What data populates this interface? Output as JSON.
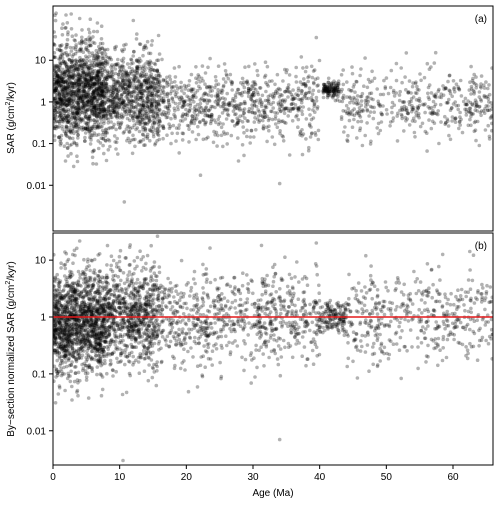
{
  "chart_data": [
    {
      "type": "scatter",
      "panel_label": "(a)",
      "ylabel": "SAR (g/cm2/kyr)",
      "ylabel_parts": {
        "before": "SAR (g/cm",
        "sup": "2",
        "after": "/kyr)"
      },
      "y_scale": "log",
      "ylim": [
        0.0008,
        200
      ],
      "xlim": [
        0,
        66
      ],
      "y_ticks": [
        0.01,
        0.1,
        1,
        10
      ],
      "y_tick_labels": [
        "0.01",
        "0.1",
        "1",
        "10"
      ],
      "point_color": "#000000",
      "point_opacity": 0.3,
      "clusters": [
        {
          "x_range": [
            0,
            8
          ],
          "y_center": 1.8,
          "y_spread_decades": 0.6,
          "count": 1400
        },
        {
          "x_range": [
            8,
            16
          ],
          "y_center": 1.3,
          "y_spread_decades": 0.55,
          "count": 800
        },
        {
          "x_range": [
            16,
            40
          ],
          "y_center": 0.9,
          "y_spread_decades": 0.45,
          "count": 750
        },
        {
          "x_range": [
            40.5,
            43
          ],
          "y_center": 2.0,
          "y_spread_decades": 0.1,
          "count": 120
        },
        {
          "x_range": [
            43,
            66
          ],
          "y_center": 0.9,
          "y_spread_decades": 0.4,
          "count": 450
        }
      ],
      "outliers": [
        {
          "x": 0.3,
          "y": 120
        },
        {
          "x": 4,
          "y": 100
        },
        {
          "x": 10.7,
          "y": 0.004
        },
        {
          "x": 34,
          "y": 0.011
        },
        {
          "x": 39.5,
          "y": 35
        },
        {
          "x": 53,
          "y": 15
        }
      ]
    },
    {
      "type": "scatter",
      "panel_label": "(b)",
      "ylabel": "By-section normalized SAR (g/cm2/kyr)",
      "ylabel_parts": {
        "before": "By−section normalized SAR (g/cm",
        "sup": "2",
        "after": "/kyr)"
      },
      "xlabel": "Age (Ma)",
      "y_scale": "log",
      "ylim": [
        0.0025,
        30
      ],
      "xlim": [
        0,
        66
      ],
      "x_ticks": [
        0,
        10,
        20,
        30,
        40,
        50,
        60
      ],
      "x_tick_labels": [
        "0",
        "10",
        "20",
        "30",
        "40",
        "50",
        "60"
      ],
      "y_ticks": [
        0.01,
        0.1,
        1,
        10
      ],
      "y_tick_labels": [
        "0.01",
        "0.1",
        "1",
        "10"
      ],
      "reference_line": {
        "y": 1,
        "color": "#e41a1c"
      },
      "point_color": "#000000",
      "point_opacity": 0.3,
      "clusters": [
        {
          "x_range": [
            0,
            8
          ],
          "y_center": 0.8,
          "y_spread_decades": 0.45,
          "count": 1400
        },
        {
          "x_range": [
            8,
            16
          ],
          "y_center": 1.0,
          "y_spread_decades": 0.45,
          "count": 800
        },
        {
          "x_range": [
            16,
            40
          ],
          "y_center": 1.0,
          "y_spread_decades": 0.4,
          "count": 750
        },
        {
          "x_range": [
            40,
            44
          ],
          "y_center": 1.0,
          "y_spread_decades": 0.15,
          "count": 150
        },
        {
          "x_range": [
            44,
            66
          ],
          "y_center": 1.0,
          "y_spread_decades": 0.4,
          "count": 450
        }
      ],
      "outliers": [
        {
          "x": 2,
          "y": 13
        },
        {
          "x": 10.5,
          "y": 0.003
        },
        {
          "x": 34,
          "y": 0.007
        },
        {
          "x": 39.5,
          "y": 20
        },
        {
          "x": 23,
          "y": 7
        }
      ]
    }
  ]
}
